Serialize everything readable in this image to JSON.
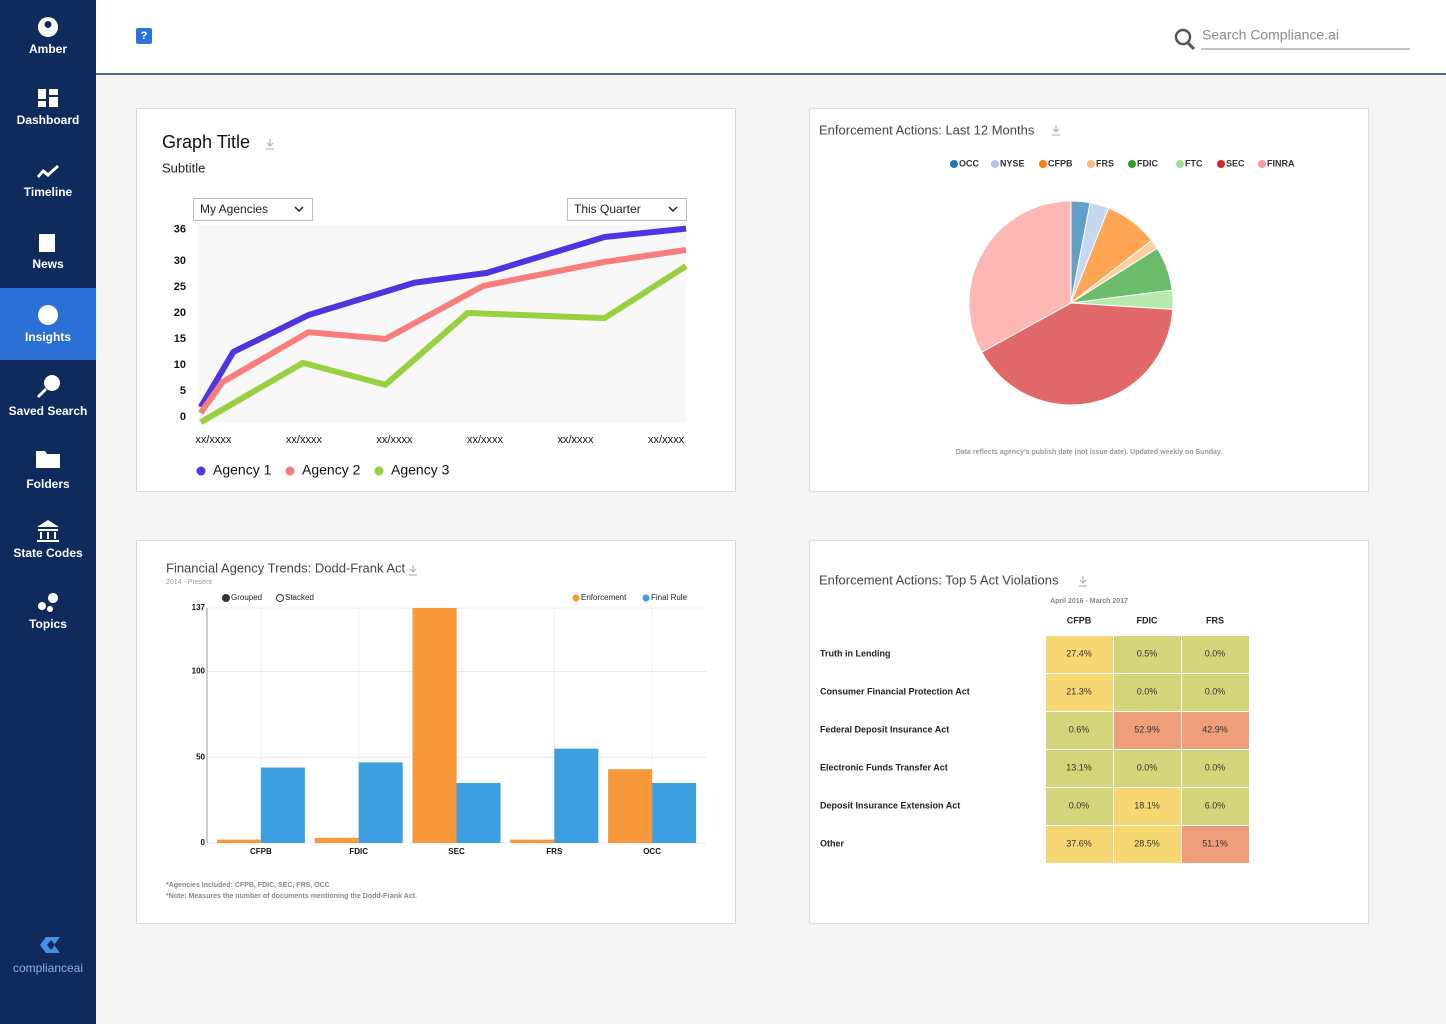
{
  "sidebar": {
    "nav": [
      {
        "label": "Amber"
      },
      {
        "label": "Dashboard"
      },
      {
        "label": "Timeline"
      },
      {
        "label": "News"
      },
      {
        "label": "Insights"
      },
      {
        "label": "Saved Search"
      },
      {
        "label": "Folders"
      },
      {
        "label": "State Codes"
      },
      {
        "label": "Topics"
      }
    ],
    "active": "Insights",
    "brand": "complianceai"
  },
  "header": {
    "help": "?",
    "search_placeholder": "Search Compliance.ai"
  },
  "chart_data": [
    {
      "type": "line",
      "title": "Graph Title",
      "subtitle": "Subtitle",
      "filters": [
        "My Agencies",
        "This Quarter"
      ],
      "xlim": [
        -0.17,
        5.22
      ],
      "xticks": [
        {
          "value": 0,
          "label": "xx/xxxx"
        },
        {
          "value": 1,
          "label": "xx/xxxx"
        },
        {
          "value": 2,
          "label": "xx/xxxx"
        },
        {
          "value": 3,
          "label": "xx/xxxx"
        },
        {
          "value": 4,
          "label": "xx/xxxx"
        },
        {
          "value": 5,
          "label": "xx/xxxx"
        }
      ],
      "ylim": [
        -1.15,
        36.9
      ],
      "yticks": [
        0,
        5,
        10,
        15,
        20,
        25,
        30,
        36
      ],
      "series": [
        {
          "name": "Agency 1",
          "color": "#5034e4",
          "x": [
            -0.14,
            0.22,
            1.05,
            2.22,
            3.02,
            4.32,
            5.22
          ],
          "values": [
            1.9,
            12.5,
            19.6,
            25.8,
            27.7,
            34.6,
            36.2
          ]
        },
        {
          "name": "Agency 2",
          "color": "#f87e7e",
          "x": [
            -0.14,
            0.1,
            1.05,
            1.9,
            2.98,
            4.32,
            5.22
          ],
          "values": [
            0.8,
            6.7,
            16.3,
            15.0,
            25.2,
            29.8,
            32.1
          ]
        },
        {
          "name": "Agency 3",
          "color": "#97d140",
          "x": [
            -0.14,
            0.99,
            1.9,
            2.81,
            4.32,
            5.22
          ],
          "values": [
            -1,
            10.4,
            6.2,
            20.0,
            19.0,
            29.0
          ]
        }
      ]
    },
    {
      "type": "pie",
      "title": "Enforcement Actions: Last 12 Months",
      "categories": [
        "OCC",
        "NYSE",
        "CFPB",
        "FRS",
        "FDIC",
        "FTC",
        "SEC",
        "FINRA"
      ],
      "values": [
        3,
        3,
        8.5,
        1.5,
        7,
        3,
        41,
        33
      ],
      "colors": [
        "#1f77b4",
        "#aec7e8",
        "#ff7f0e",
        "#ffbb78",
        "#2ca02c",
        "#98df8a",
        "#d62728",
        "#ff9896"
      ],
      "note": "Data reflects agency's publish date (not issue date). Updated weekly on Sunday."
    },
    {
      "type": "bar",
      "title": "Financial Agency Trends: Dodd-Frank Act",
      "subtitle": "2014 - Present",
      "modes": [
        "Grouped",
        "Stacked"
      ],
      "mode": "Grouped",
      "categories": [
        "CFPB",
        "FDIC",
        "SEC",
        "FRS",
        "OCC"
      ],
      "series": [
        {
          "name": "Enforcement",
          "color": "#f7983a",
          "values": [
            2,
            3,
            137,
            2,
            43
          ]
        },
        {
          "name": "Final Rule",
          "color": "#3d9fe0",
          "values": [
            44,
            47,
            35,
            55,
            35
          ]
        }
      ],
      "ylim": [
        0,
        137
      ],
      "yticks": [
        0,
        50,
        100,
        137
      ],
      "grid": true,
      "notes": [
        "*Agencies Included: CFPB, FDIC, SEC, FRS, OCC",
        "*Note: Measures the number of documents mentioning the Dodd-Frank Act."
      ]
    },
    {
      "type": "heatmap",
      "title": "Enforcement Actions: Top 5 Act Violations",
      "subtitle": "April 2016 - March 2017",
      "columns": [
        "CFPB",
        "FDIC",
        "FRS"
      ],
      "rows": [
        "Truth in Lending",
        "Consumer Financial Protection Act",
        "Federal Deposit Insurance Act",
        "Electronic Funds Transfer Act",
        "Deposit Insurance Extension Act",
        "Other"
      ],
      "values": [
        [
          27.4,
          0.5,
          0.0
        ],
        [
          21.3,
          0.0,
          0.0
        ],
        [
          0.6,
          52.9,
          42.9
        ],
        [
          13.1,
          0.0,
          0.0
        ],
        [
          0.0,
          18.1,
          6.0
        ],
        [
          37.6,
          28.5,
          51.1
        ]
      ],
      "value_labels": [
        [
          "27.4%",
          "0.5%",
          "0.0%"
        ],
        [
          "21.3%",
          "0.0%",
          "0.0%"
        ],
        [
          "0.6%",
          "52.9%",
          "42.9%"
        ],
        [
          "13.1%",
          "0.0%",
          "0.0%"
        ],
        [
          "0.0%",
          "18.1%",
          "6.0%"
        ],
        [
          "37.6%",
          "28.5%",
          "51.1%"
        ]
      ],
      "cell_colors": [
        [
          "#f7d774",
          "#d3d57a",
          "#d3d57a"
        ],
        [
          "#f7d774",
          "#d3d57a",
          "#d3d57a"
        ],
        [
          "#d3d57a",
          "#ef9e7c",
          "#ef9e7c"
        ],
        [
          "#d3d57a",
          "#d3d57a",
          "#d3d57a"
        ],
        [
          "#d3d57a",
          "#f7d774",
          "#d3d57a"
        ],
        [
          "#f7d774",
          "#f7d774",
          "#ef9e7c"
        ]
      ]
    }
  ]
}
